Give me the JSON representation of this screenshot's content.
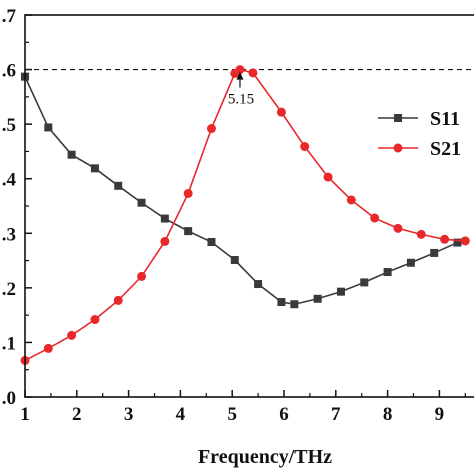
{
  "chart_data": {
    "type": "line",
    "xlabel": "Frequency/THz",
    "ylabel": "",
    "xlim": [
      1,
      9.5
    ],
    "ylim": [
      0,
      0.7
    ],
    "x_ticks": [
      1,
      2,
      3,
      4,
      5,
      6,
      7,
      8,
      9
    ],
    "y_ticks": [
      0.0,
      0.1,
      0.2,
      0.3,
      0.4,
      0.5,
      0.6,
      0.7
    ],
    "y_tick_labels": [
      ".0",
      ".1",
      ".2",
      ".3",
      ".4",
      ".5",
      ".6",
      ".7"
    ],
    "grid": false,
    "legend_position": "right",
    "series": [
      {
        "name": "S11",
        "color": "#3a3a3a",
        "marker": "square",
        "x": [
          1.0,
          1.45,
          1.9,
          2.35,
          2.8,
          3.25,
          3.7,
          4.15,
          4.6,
          5.05,
          5.5,
          5.95,
          6.2,
          6.65,
          7.1,
          7.55,
          8.0,
          8.45,
          8.9,
          9.35
        ],
        "y": [
          0.587,
          0.494,
          0.444,
          0.419,
          0.387,
          0.356,
          0.327,
          0.304,
          0.284,
          0.251,
          0.207,
          0.174,
          0.17,
          0.18,
          0.193,
          0.21,
          0.229,
          0.246,
          0.264,
          0.283
        ]
      },
      {
        "name": "S21",
        "color": "#e8282b",
        "marker": "circle",
        "x": [
          1.0,
          1.45,
          1.9,
          2.35,
          2.8,
          3.25,
          3.7,
          4.15,
          4.6,
          5.05,
          5.15,
          5.4,
          5.95,
          6.4,
          6.85,
          7.3,
          7.75,
          8.2,
          8.65,
          9.1,
          9.5
        ],
        "y": [
          0.067,
          0.089,
          0.113,
          0.142,
          0.177,
          0.221,
          0.285,
          0.373,
          0.492,
          0.593,
          0.6,
          0.594,
          0.522,
          0.459,
          0.403,
          0.361,
          0.328,
          0.309,
          0.298,
          0.289,
          0.286
        ]
      }
    ],
    "reference_line": {
      "y": 0.6,
      "style": "dashed"
    },
    "annotation": {
      "x": 5.15,
      "y": 0.6,
      "text": "5.15"
    }
  }
}
